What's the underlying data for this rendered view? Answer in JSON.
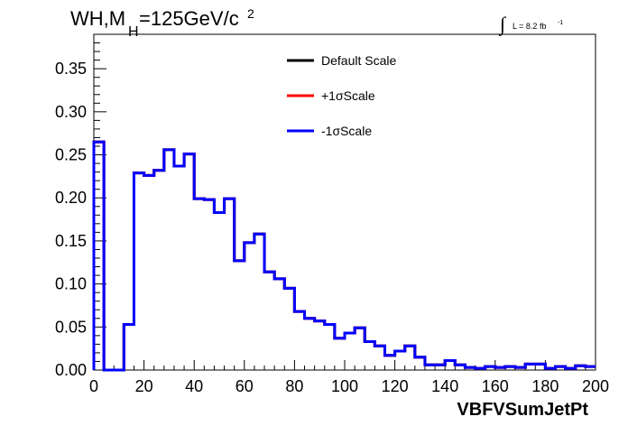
{
  "header": {
    "title_main": "WH,M",
    "title_sub": "H",
    "title_rest": "=125GeV/c",
    "title_sup": "2",
    "lumi_symbol": "∫",
    "lumi_text": "L = 8.2 fb",
    "lumi_sup": "-1"
  },
  "colors": {
    "default": "#000000",
    "plus": "#ff0000",
    "minus": "#0000ff",
    "frame": "#000000",
    "background": "#ffffff"
  },
  "chart_data": {
    "type": "line",
    "style": "step-histogram",
    "xlabel": "VBFVSumJetPt",
    "ylabel": "",
    "xlim": [
      0,
      200
    ],
    "ylim": [
      0,
      0.39
    ],
    "x_ticks": [
      0,
      20,
      40,
      60,
      80,
      100,
      120,
      140,
      160,
      180,
      200
    ],
    "y_ticks": [
      0.0,
      0.05,
      0.1,
      0.15,
      0.2,
      0.25,
      0.3,
      0.35
    ],
    "y_tick_labels": [
      "0.00",
      "0.05",
      "0.10",
      "0.15",
      "0.20",
      "0.25",
      "0.30",
      "0.35"
    ],
    "bin_width": 4,
    "bin_edges_start": 0,
    "legend_position": "top-center",
    "series": [
      {
        "name": "Default Scale",
        "color": "#000000",
        "values": [
          0.265,
          0.0,
          0.0,
          0.053,
          0.229,
          0.226,
          0.232,
          0.256,
          0.237,
          0.251,
          0.199,
          0.198,
          0.183,
          0.199,
          0.127,
          0.148,
          0.158,
          0.114,
          0.106,
          0.095,
          0.068,
          0.06,
          0.057,
          0.053,
          0.037,
          0.043,
          0.049,
          0.033,
          0.028,
          0.017,
          0.022,
          0.028,
          0.015,
          0.006,
          0.006,
          0.011,
          0.006,
          0.003,
          0.002,
          0.004,
          0.003,
          0.004,
          0.003,
          0.007,
          0.007,
          0.002,
          0.004,
          0.002,
          0.005,
          0.004
        ]
      },
      {
        "name": "+1σScale",
        "color": "#ff0000",
        "values": [
          0.265,
          0.0,
          0.0,
          0.053,
          0.229,
          0.226,
          0.232,
          0.256,
          0.237,
          0.251,
          0.199,
          0.198,
          0.183,
          0.199,
          0.127,
          0.148,
          0.158,
          0.114,
          0.106,
          0.095,
          0.068,
          0.06,
          0.057,
          0.053,
          0.037,
          0.043,
          0.049,
          0.033,
          0.028,
          0.017,
          0.022,
          0.028,
          0.015,
          0.006,
          0.006,
          0.011,
          0.006,
          0.003,
          0.002,
          0.004,
          0.003,
          0.004,
          0.003,
          0.007,
          0.007,
          0.002,
          0.004,
          0.002,
          0.005,
          0.004
        ]
      },
      {
        "name": "-1σScale",
        "color": "#0000ff",
        "values": [
          0.265,
          0.0,
          0.0,
          0.053,
          0.229,
          0.226,
          0.232,
          0.256,
          0.237,
          0.251,
          0.199,
          0.198,
          0.183,
          0.199,
          0.127,
          0.148,
          0.158,
          0.114,
          0.106,
          0.095,
          0.068,
          0.06,
          0.057,
          0.053,
          0.037,
          0.043,
          0.049,
          0.033,
          0.028,
          0.017,
          0.022,
          0.028,
          0.015,
          0.006,
          0.006,
          0.011,
          0.006,
          0.003,
          0.002,
          0.004,
          0.003,
          0.004,
          0.003,
          0.007,
          0.007,
          0.002,
          0.004,
          0.002,
          0.005,
          0.004
        ]
      }
    ]
  }
}
